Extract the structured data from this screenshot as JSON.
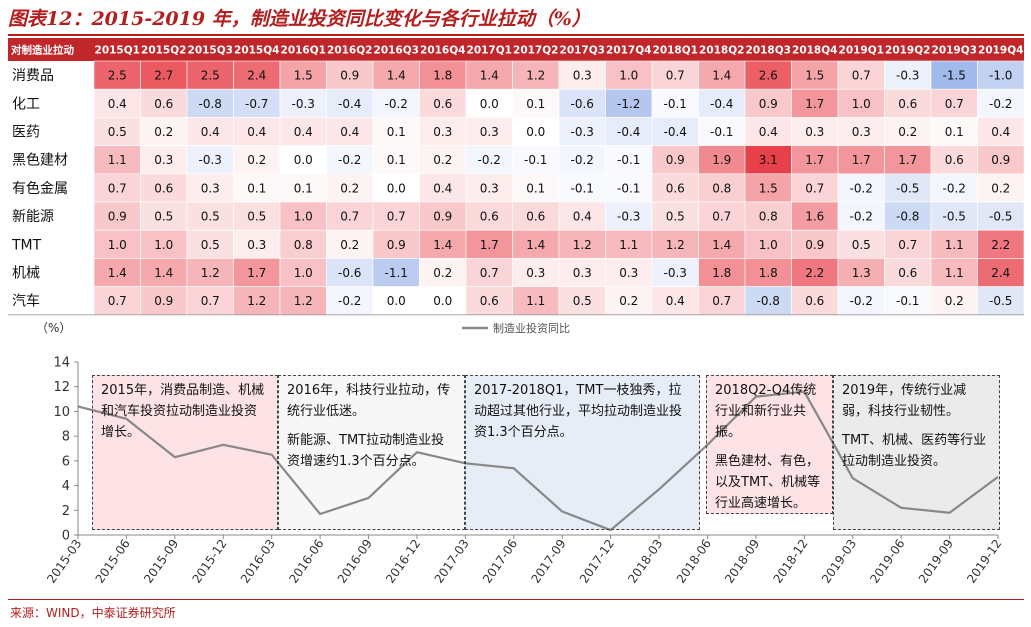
{
  "title": "图表12：2015-2019 年，制造业投资同比变化与各行业拉动（%）",
  "source": "来源：WIND，中泰证券研究所",
  "colors": {
    "header_bg": "#c0262a",
    "positive": "#e8404a",
    "negative": "#3f6fd6",
    "accent": "#b41e1e",
    "line": "#888888",
    "box1_bg": "#fde3e6",
    "box2_bg": "#f7f7f7",
    "box3_bg": "#e7edf7",
    "box4_bg": "#fde3e6",
    "box5_bg": "#ebebeb"
  },
  "heatmap": {
    "corner_label": "对制造业拉动",
    "columns": [
      "2015Q1",
      "2015Q2",
      "2015Q3",
      "2015Q4",
      "2016Q1",
      "2016Q2",
      "2016Q3",
      "2016Q4",
      "2017Q1",
      "2017Q2",
      "2017Q3",
      "2017Q4",
      "2018Q1",
      "2018Q2",
      "2018Q3",
      "2018Q4",
      "2019Q1",
      "2019Q2",
      "2019Q3",
      "2019Q4"
    ],
    "rows": [
      {
        "label": "消费品",
        "values": [
          2.5,
          2.7,
          2.5,
          2.4,
          1.5,
          0.9,
          1.4,
          1.8,
          1.4,
          1.2,
          0.3,
          1.0,
          0.7,
          1.4,
          2.6,
          1.5,
          0.7,
          -0.3,
          -1.5,
          -1.0
        ]
      },
      {
        "label": "化工",
        "values": [
          0.4,
          0.6,
          -0.8,
          -0.7,
          -0.3,
          -0.4,
          -0.2,
          0.6,
          0.0,
          0.1,
          -0.6,
          -1.2,
          -0.1,
          -0.4,
          0.9,
          1.7,
          1.0,
          0.6,
          0.7,
          -0.2
        ]
      },
      {
        "label": "医药",
        "values": [
          0.5,
          0.2,
          0.4,
          0.4,
          0.4,
          0.4,
          0.1,
          0.3,
          0.3,
          0.0,
          -0.3,
          -0.4,
          -0.4,
          -0.1,
          0.4,
          0.3,
          0.3,
          0.2,
          0.1,
          0.4
        ]
      },
      {
        "label": "黑色建材",
        "values": [
          1.1,
          0.3,
          -0.3,
          0.2,
          0.0,
          -0.2,
          0.1,
          0.2,
          -0.2,
          -0.1,
          -0.2,
          -0.1,
          0.9,
          1.9,
          3.1,
          1.7,
          1.7,
          1.7,
          0.6,
          0.9
        ]
      },
      {
        "label": "有色金属",
        "values": [
          0.7,
          0.6,
          0.3,
          0.1,
          0.1,
          0.2,
          0.0,
          0.4,
          0.3,
          0.1,
          -0.1,
          -0.1,
          0.6,
          0.8,
          1.5,
          0.7,
          -0.2,
          -0.5,
          -0.2,
          0.2
        ]
      },
      {
        "label": "新能源",
        "values": [
          0.9,
          0.5,
          0.5,
          0.5,
          1.0,
          0.7,
          0.7,
          0.9,
          0.6,
          0.6,
          0.4,
          -0.3,
          0.5,
          0.7,
          0.8,
          1.6,
          -0.2,
          -0.8,
          -0.5,
          -0.5
        ]
      },
      {
        "label": "TMT",
        "values": [
          1.0,
          1.0,
          0.5,
          0.3,
          0.8,
          0.2,
          0.9,
          1.4,
          1.7,
          1.4,
          1.2,
          1.1,
          1.2,
          1.4,
          1.0,
          0.9,
          0.5,
          0.7,
          1.1,
          2.2
        ]
      },
      {
        "label": "机械",
        "values": [
          1.4,
          1.4,
          1.2,
          1.7,
          1.0,
          -0.6,
          -1.1,
          0.2,
          0.7,
          0.3,
          0.3,
          0.3,
          -0.3,
          1.8,
          1.8,
          2.2,
          1.3,
          0.6,
          1.1,
          2.4
        ]
      },
      {
        "label": "汽车",
        "values": [
          0.7,
          0.9,
          0.7,
          1.2,
          1.2,
          -0.2,
          0.0,
          0.0,
          0.6,
          1.1,
          0.5,
          0.2,
          0.4,
          0.7,
          -0.8,
          0.6,
          -0.2,
          -0.1,
          0.2,
          -0.5
        ]
      }
    ]
  },
  "chart_data": {
    "type": "line",
    "title": "",
    "ylabel": "（%）",
    "xlabel": "",
    "ylim": [
      0,
      14
    ],
    "yticks": [
      0,
      2,
      4,
      6,
      8,
      10,
      12,
      14
    ],
    "legend_position": "top-center",
    "x": [
      "2015-03",
      "2015-06",
      "2015-09",
      "2015-12",
      "2016-03",
      "2016-06",
      "2016-09",
      "2016-12",
      "2017-03",
      "2017-06",
      "2017-09",
      "2017-12",
      "2018-03",
      "2018-06",
      "2018-09",
      "2018-12",
      "2019-03",
      "2019-06",
      "2019-09",
      "2019-12"
    ],
    "series": [
      {
        "name": "制造业投资同比",
        "values": [
          10.4,
          9.4,
          6.3,
          7.3,
          6.5,
          1.7,
          3.0,
          6.7,
          5.8,
          5.4,
          1.9,
          0.4,
          3.7,
          7.3,
          11.2,
          11.6,
          4.6,
          2.2,
          1.8,
          4.7
        ]
      }
    ]
  },
  "annotations": [
    {
      "paragraphs": [
        "2015年，消费品制造、机械和汽车投资拉动制造业投资增长。"
      ]
    },
    {
      "paragraphs": [
        "2016年，科技行业拉动，传统行业低迷。",
        "新能源、TMT拉动制造业投资增速约1.3个百分点。"
      ]
    },
    {
      "paragraphs": [
        "2017-2018Q1，TMT一枝独秀，拉动超过其他行业，平均拉动制造业投资1.3个百分点。"
      ]
    },
    {
      "paragraphs": [
        "2018Q2-Q4传统行业和新行业共振。",
        "黑色建材、有色，以及TMT、机械等行业高速增长。"
      ]
    },
    {
      "paragraphs": [
        "2019年，传统行业减弱，科技行业韧性。",
        "TMT、机械、医药等行业拉动制造业投资。"
      ]
    }
  ]
}
